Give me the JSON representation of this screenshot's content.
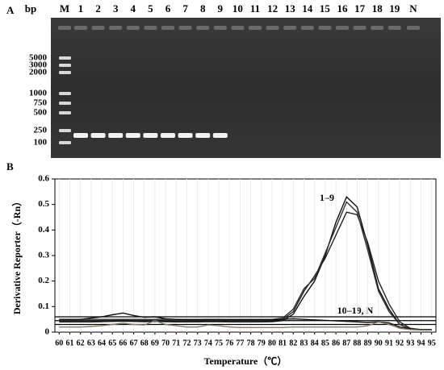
{
  "panel_a": {
    "label": "A",
    "unit": "bp",
    "lanes": [
      "M",
      "1",
      "2",
      "3",
      "4",
      "5",
      "6",
      "7",
      "8",
      "9",
      "10",
      "11",
      "12",
      "13",
      "14",
      "15",
      "16",
      "17",
      "18",
      "19",
      "N"
    ],
    "ladder": [
      5000,
      3000,
      2000,
      1000,
      750,
      500,
      250,
      100
    ]
  },
  "chart_data": {
    "type": "line",
    "panel_label": "B",
    "x_label": "Temperature（℃）",
    "y_label": "Derivative Reporter（-Rn）",
    "annotations": [
      "1–9",
      "10–19, N"
    ],
    "x": [
      60,
      61,
      62,
      63,
      64,
      65,
      66,
      67,
      68,
      69,
      70,
      71,
      72,
      73,
      74,
      75,
      76,
      77,
      78,
      79,
      80,
      81,
      82,
      83,
      84,
      85,
      86,
      87,
      88,
      89,
      90,
      91,
      92,
      93,
      94,
      95
    ],
    "series": [
      {
        "color": "#111111",
        "values": [
          0.04,
          0.04,
          0.04,
          0.04,
          0.041,
          0.042,
          0.043,
          0.042,
          0.041,
          0.042,
          0.041,
          0.04,
          0.04,
          0.04,
          0.041,
          0.041,
          0.04,
          0.04,
          0.04,
          0.04,
          0.041,
          0.045,
          0.07,
          0.14,
          0.2,
          0.3,
          0.43,
          0.53,
          0.49,
          0.34,
          0.17,
          0.09,
          0.03,
          0.012,
          0.01,
          0.01
        ]
      },
      {
        "color": "#222222",
        "values": [
          0.045,
          0.045,
          0.045,
          0.045,
          0.046,
          0.046,
          0.047,
          0.046,
          0.046,
          0.046,
          0.045,
          0.045,
          0.045,
          0.045,
          0.046,
          0.045,
          0.045,
          0.045,
          0.045,
          0.045,
          0.046,
          0.05,
          0.08,
          0.16,
          0.22,
          0.29,
          0.38,
          0.47,
          0.46,
          0.35,
          0.2,
          0.11,
          0.04,
          0.015,
          0.01,
          0.01
        ]
      },
      {
        "color": "#333333",
        "values": [
          0.05,
          0.05,
          0.05,
          0.05,
          0.05,
          0.05,
          0.05,
          0.05,
          0.05,
          0.05,
          0.05,
          0.05,
          0.05,
          0.05,
          0.05,
          0.05,
          0.05,
          0.05,
          0.05,
          0.05,
          0.05,
          0.055,
          0.09,
          0.17,
          0.21,
          0.31,
          0.41,
          0.51,
          0.47,
          0.32,
          0.16,
          0.08,
          0.03,
          0.012,
          0.01,
          0.01
        ]
      },
      {
        "color": "#111111",
        "values": [
          0.05,
          0.05,
          0.05,
          0.055,
          0.06,
          0.068,
          0.075,
          0.065,
          0.058,
          0.06,
          0.052,
          0.05,
          0.048,
          0.048,
          0.05,
          0.05,
          0.048,
          0.048,
          0.048,
          0.048,
          0.048,
          0.05,
          0.052,
          0.05,
          0.048,
          0.046,
          0.044,
          0.042,
          0.04,
          0.038,
          0.04,
          0.036,
          0.02,
          0.012,
          0.01,
          0.01
        ]
      },
      {
        "color": "#8a7a5a",
        "values": [
          0.02,
          0.02,
          0.02,
          0.022,
          0.025,
          0.03,
          0.035,
          0.03,
          0.028,
          0.045,
          0.03,
          0.025,
          0.02,
          0.02,
          0.028,
          0.025,
          0.02,
          0.018,
          0.018,
          0.018,
          0.018,
          0.018,
          0.02,
          0.02,
          0.02,
          0.02,
          0.02,
          0.02,
          0.02,
          0.025,
          0.04,
          0.03,
          0.015,
          0.01,
          0.008,
          0.008
        ]
      }
    ],
    "thresholds": [
      0.06,
      0.045,
      0.03
    ],
    "xlim": [
      59.6,
      95.4
    ],
    "xticks": [
      60,
      61,
      62,
      63,
      64,
      65,
      66,
      67,
      68,
      69,
      70,
      71,
      72,
      73,
      74,
      75,
      76,
      77,
      78,
      79,
      80,
      81,
      82,
      83,
      84,
      85,
      86,
      87,
      88,
      89,
      90,
      91,
      92,
      93,
      94,
      95
    ],
    "ylim": [
      0,
      0.6
    ],
    "yticks": [
      0,
      0.1,
      0.2,
      0.3,
      0.4,
      0.5,
      0.6
    ]
  }
}
